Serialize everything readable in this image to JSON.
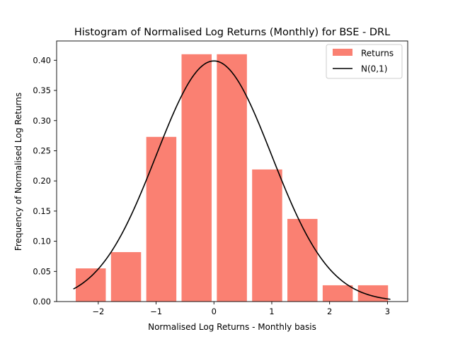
{
  "chart_data": {
    "type": "bar",
    "title": "Histogram of Normalised Log Returns (Monthly) for BSE - DRL",
    "xlabel": "Normalised Log Returns - Monthly basis",
    "ylabel": "Frequency of Normalised Log Returns",
    "xlim": [
      -2.72,
      3.35
    ],
    "ylim": [
      0,
      0.432
    ],
    "xticks": [
      -2,
      -1,
      0,
      1,
      2,
      3
    ],
    "yticks": [
      0.0,
      0.05,
      0.1,
      0.15,
      0.2,
      0.25,
      0.3,
      0.35,
      0.4
    ],
    "xtick_labels": [
      "−2",
      "−1",
      "0",
      "1",
      "2",
      "3"
    ],
    "ytick_labels": [
      "0.00",
      "0.05",
      "0.10",
      "0.15",
      "0.20",
      "0.25",
      "0.30",
      "0.35",
      "0.40"
    ],
    "bar_width": 0.52,
    "bars": [
      {
        "x": -2.13,
        "y": 0.055
      },
      {
        "x": -1.52,
        "y": 0.082
      },
      {
        "x": -0.91,
        "y": 0.273
      },
      {
        "x": -0.3,
        "y": 0.41
      },
      {
        "x": 0.31,
        "y": 0.41
      },
      {
        "x": 0.92,
        "y": 0.219
      },
      {
        "x": 1.53,
        "y": 0.137
      },
      {
        "x": 2.14,
        "y": 0.027
      },
      {
        "x": 2.75,
        "y": 0.027
      }
    ],
    "curve": {
      "type": "normal_pdf",
      "mean": 0,
      "std": 1,
      "x_range": [
        -2.43,
        3.05
      ]
    },
    "series": [
      {
        "name": "Returns",
        "kind": "bar",
        "color": "#fa8072"
      },
      {
        "name": "N(0,1)",
        "kind": "line",
        "color": "#000000"
      }
    ],
    "legend": {
      "placement": "top-right"
    },
    "grid": false
  }
}
